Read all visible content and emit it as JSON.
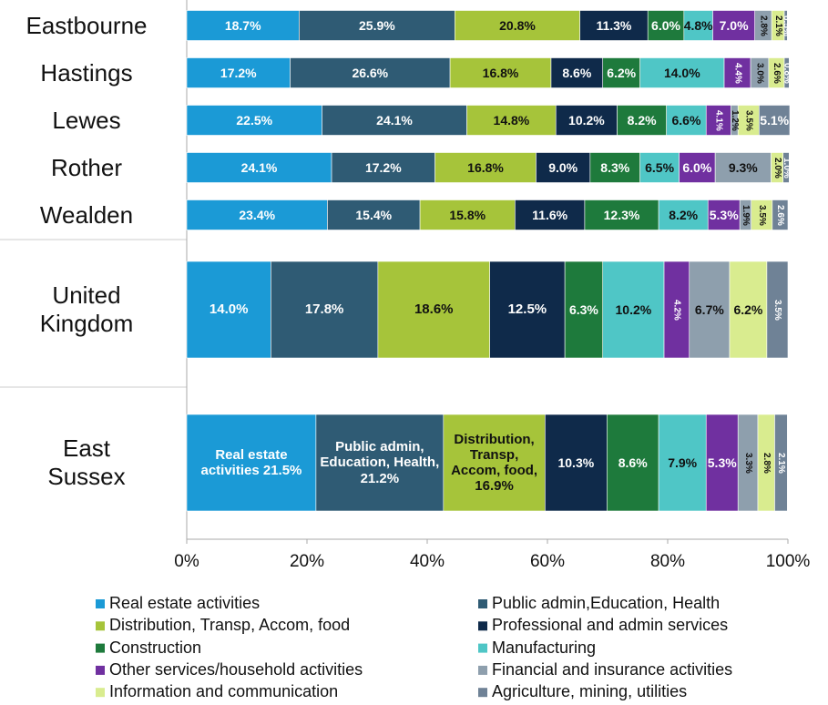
{
  "chart_data": {
    "type": "stacked-bar-horizontal",
    "categories": [
      "Eastbourne",
      "Hastings",
      "Lewes",
      "Rother",
      "Wealden",
      "United Kingdom",
      "East Sussex"
    ],
    "series": [
      {
        "name": "Real estate activities",
        "color": "#1b9ad6",
        "values": [
          18.7,
          17.2,
          22.5,
          24.1,
          23.4,
          14.0,
          21.5
        ],
        "value_labels": [
          "18.7%",
          "17.2%",
          "22.5%",
          "24.1%",
          "23.4%",
          "14.0%",
          "Real estate activities 21.5%"
        ]
      },
      {
        "name": "Public admin,Education, Health",
        "color": "#2f5b74",
        "values": [
          25.9,
          26.6,
          24.1,
          17.2,
          15.4,
          17.8,
          21.2
        ],
        "value_labels": [
          "25.9%",
          "26.6%",
          "24.1%",
          "17.2%",
          "15.4%",
          "17.8%",
          "Public admin, Education, Health, 21.2%"
        ]
      },
      {
        "name": "Distribution, Transp, Accom, food",
        "color": "#a6c43a",
        "values": [
          20.8,
          16.8,
          14.8,
          16.8,
          15.8,
          18.6,
          16.9
        ],
        "value_labels": [
          "20.8%",
          "16.8%",
          "14.8%",
          "16.8%",
          "15.8%",
          "18.6%",
          "Distribution, Transp, Accom, food, 16.9%"
        ]
      },
      {
        "name": "Professional and admin services",
        "color": "#0f2a4a",
        "values": [
          11.3,
          8.6,
          10.2,
          9.0,
          11.6,
          12.5,
          10.3
        ],
        "value_labels": [
          "11.3%",
          "8.6%",
          "10.2%",
          "9.0%",
          "11.6%",
          "12.5%",
          "10.3%"
        ]
      },
      {
        "name": "Construction",
        "color": "#1e7a3c",
        "values": [
          6.0,
          6.2,
          8.2,
          8.3,
          12.3,
          6.3,
          8.6
        ],
        "value_labels": [
          "6.0%",
          "6.2%",
          "8.2%",
          "8.3%",
          "12.3%",
          "6.3%",
          "8.6%"
        ]
      },
      {
        "name": "Manufacturing",
        "color": "#4fc6c6",
        "values": [
          4.8,
          14.0,
          6.6,
          6.5,
          8.2,
          10.2,
          7.9
        ],
        "value_labels": [
          "4.8%",
          "14.0%",
          "6.6%",
          "6.5%",
          "8.2%",
          "10.2%",
          "7.9%"
        ]
      },
      {
        "name": "Other services/household activities",
        "color": "#7030a0",
        "values": [
          7.0,
          4.4,
          4.1,
          6.0,
          5.3,
          4.2,
          5.3
        ],
        "value_labels": [
          "7.0%",
          "4.4%",
          "4.1%",
          "6.0%",
          "5.3%",
          "4.2%",
          "5.3%"
        ]
      },
      {
        "name": "Financial and insurance activities",
        "color": "#8e9fad",
        "values": [
          2.8,
          3.0,
          1.2,
          9.3,
          1.9,
          6.7,
          3.3
        ],
        "value_labels": [
          "2.8%",
          "3.0%",
          "1.2%",
          "9.3%",
          "1.9%",
          "6.7%",
          "3.3%"
        ]
      },
      {
        "name": "Information and communication",
        "color": "#d9ec8f",
        "values": [
          2.1,
          2.6,
          3.5,
          2.0,
          3.5,
          6.2,
          2.8
        ],
        "value_labels": [
          "2.1%",
          "2.6%",
          "3.5%",
          "2.0%",
          "3.5%",
          "6.2%",
          "2.8%"
        ]
      },
      {
        "name": "Agriculture, mining, utilities",
        "color": "#6f8296",
        "values": [
          0.5,
          0.8,
          5.1,
          1.0,
          2.6,
          3.5,
          2.1
        ],
        "value_labels": [
          "0.5%",
          "0.8%",
          "5.1%",
          "1.0%",
          "2.6%",
          "3.5%",
          "2.1%"
        ]
      }
    ],
    "xlim": [
      0,
      100
    ],
    "xticks": [
      {
        "value": 0,
        "label": "0%"
      },
      {
        "value": 20,
        "label": "20%"
      },
      {
        "value": 40,
        "label": "40%"
      },
      {
        "value": 60,
        "label": "60%"
      },
      {
        "value": 80,
        "label": "80%"
      },
      {
        "value": 100,
        "label": "100%"
      }
    ]
  }
}
